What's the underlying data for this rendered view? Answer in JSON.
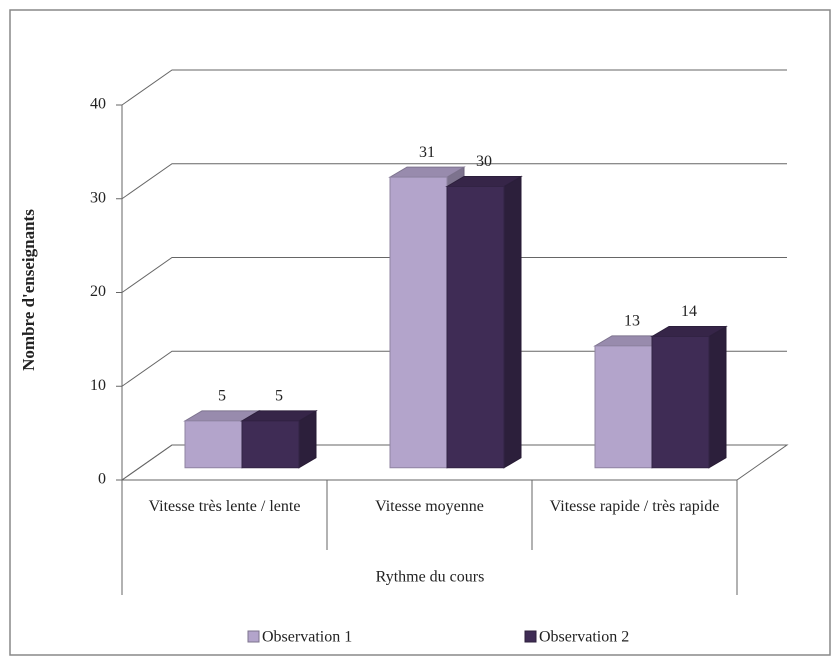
{
  "chart_data": {
    "type": "bar3d",
    "categories": [
      "Vitesse très lente / lente",
      "Vitesse moyenne",
      "Vitesse rapide / très rapide"
    ],
    "series": [
      {
        "name": "Observation 1",
        "color": "#b3a4cb",
        "values": [
          5,
          31,
          13
        ]
      },
      {
        "name": "Observation 2",
        "color": "#3f2c55",
        "values": [
          5,
          30,
          14
        ]
      }
    ],
    "ylim": [
      0,
      40
    ],
    "yticks": [
      0,
      10,
      20,
      30,
      40
    ],
    "grid": true,
    "y_label": "Nombre d'enseignants",
    "x_label": "Rythme du cours",
    "legend": "bottom"
  }
}
